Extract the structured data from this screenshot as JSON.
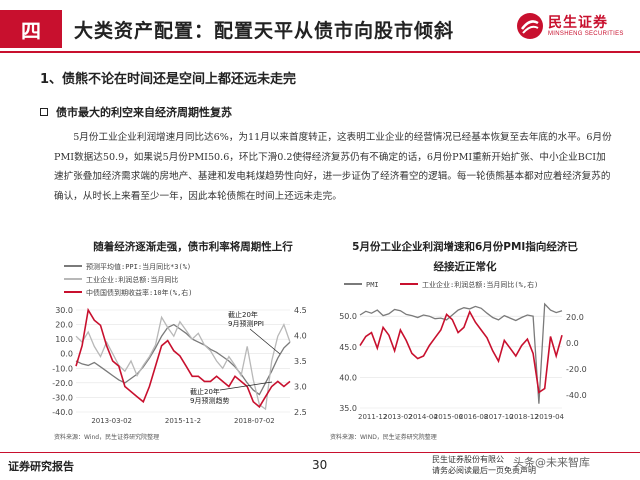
{
  "header": {
    "section_num": "四",
    "title": "大类资产配置：配置天平从债市向股市倾斜",
    "logo_cn": "民生证券",
    "logo_en": "MINSHENG SECURITIES",
    "brand_color": "#c8102e"
  },
  "subheading": "1、债熊不论在时间还是空间上都还远未走完",
  "bullet_heading": "债市最大的利空来自经济周期性复苏",
  "paragraph": "5月份工业企业利润增速月同比达6%，为11月以来首度转正，这表明工业企业的经营情况已经基本恢复至去年底的水平。6月份PMI数据达50.9，如果说5月份PMI50.6，环比下滑0.2使得经济复苏仍有不确定的话，6月份PMI重新开始扩张、中小企业BCI加速扩张叠加经济需求端的房地产、基建和发电耗煤趋势性向好，进一步证伪了经济看空的逻辑。每一轮债熊基本都对应着经济复苏的确认，从时长上来看至少一年，因此本轮债熊在时间上还远未走完。",
  "chart_data": [
    {
      "type": "line",
      "title": "随着经济逐渐走强，债市利率将周期性上行",
      "legend": [
        "预测平均值:PPI:当月同比*3(%)",
        "工业企业:利润总额:当月同比",
        "中债国债到期收益率:10年(%,右)"
      ],
      "x_ticks": [
        "2013-03-02",
        "2015-11-2",
        "2018-07-02"
      ],
      "y_left_ticks": [
        "30.0",
        "20.0",
        "10.0",
        "0.0",
        "-10.0",
        "-20.0",
        "-30.0",
        "-40.0"
      ],
      "y_left_range": [
        -40,
        30
      ],
      "y_right_ticks": [
        "4.5",
        "4.0",
        "3.5",
        "3.0",
        "2.5"
      ],
      "y_right_range": [
        2.5,
        4.5
      ],
      "annotations": [
        "截止20年9月预测PPI",
        "截止20年9月预测趋势"
      ],
      "source": "资料来源：Wind，民生证券研究院整理",
      "series": [
        {
          "name": "预测平均值:PPI:当月同比*3(%)",
          "color": "#7a7a7a",
          "axis": "left",
          "values": [
            -5,
            -7,
            -8,
            -6,
            -9,
            -12,
            -15,
            -18,
            -20,
            -17,
            -14,
            -9,
            -3,
            4,
            12,
            18,
            20,
            17,
            14,
            10,
            8,
            6,
            3,
            1,
            -2,
            -5,
            -9,
            -14,
            -20,
            -25,
            -28,
            -20,
            -12,
            -3,
            4,
            8
          ]
        },
        {
          "name": "工业企业:利润总额:当月同比",
          "color": "#b8b8b8",
          "axis": "left",
          "values": [
            12,
            8,
            15,
            5,
            -2,
            8,
            0,
            -8,
            -12,
            -5,
            -15,
            -8,
            -2,
            6,
            25,
            18,
            12,
            22,
            16,
            10,
            14,
            6,
            2,
            -5,
            -10,
            -2,
            -8,
            -15,
            5,
            -18,
            -35,
            -38,
            -5,
            12,
            20,
            8
          ]
        },
        {
          "name": "中债国债到期收益率:10年(%,右)",
          "color": "#c8102e",
          "axis": "right",
          "values": [
            3.4,
            3.8,
            4.5,
            4.3,
            4.2,
            3.8,
            3.5,
            3.4,
            3.0,
            2.9,
            2.8,
            2.7,
            3.0,
            3.4,
            3.8,
            3.9,
            3.7,
            3.6,
            3.4,
            3.2,
            3.2,
            3.1,
            3.1,
            3.2,
            3.1,
            3.0,
            3.2,
            3.1,
            3.0,
            2.7,
            2.6,
            2.8,
            3.0,
            3.1,
            3.0,
            3.1
          ]
        }
      ]
    },
    {
      "type": "line",
      "title_line1": "5月份工业企业利润增速和6月份PMI指向经济已",
      "title_line2": "经接近正常化",
      "legend": [
        "PMI",
        "工业企业:利润总额:当月同比(%,右)"
      ],
      "x_ticks": [
        "2011-12",
        "2013-02",
        "2014-04",
        "2015-06",
        "2016-08",
        "2017-10",
        "2018-12",
        "2019-04"
      ],
      "y_left_ticks": [
        "50.0",
        "45.0",
        "40.0",
        "35.0"
      ],
      "y_left_range": [
        35,
        52
      ],
      "y_right_ticks": [
        "20.0",
        "0.0",
        "-20.0",
        "-40.0"
      ],
      "y_right_range": [
        -50,
        30
      ],
      "source": "资料来源：WIND，民生证券研究院整理",
      "series": [
        {
          "name": "PMI",
          "color": "#7a7a7a",
          "axis": "left",
          "values": [
            50.2,
            50.8,
            50.5,
            51.0,
            50.1,
            50.4,
            51.1,
            50.9,
            50.3,
            50.1,
            49.8,
            50.2,
            50.0,
            49.6,
            49.7,
            49.4,
            50.2,
            51.0,
            51.4,
            51.2,
            51.6,
            51.3,
            50.5,
            49.8,
            49.4,
            50.1,
            49.7,
            49.3,
            49.8,
            50.2,
            50.0,
            35.7,
            52.0,
            51.0,
            50.6,
            50.9
          ]
        },
        {
          "name": "工业企业:利润总额:当月同比(%,右)",
          "color": "#c8102e",
          "axis": "right",
          "values": [
            -2,
            5,
            8,
            -4,
            12,
            6,
            -6,
            10,
            2,
            -8,
            -12,
            -10,
            -2,
            4,
            10,
            22,
            18,
            8,
            12,
            24,
            16,
            10,
            4,
            -6,
            -14,
            2,
            -4,
            -10,
            -2,
            3,
            -8,
            -38,
            -35,
            5,
            -10,
            6
          ]
        }
      ]
    }
  ],
  "footer": {
    "left": "证券研究报告",
    "page": "30",
    "company_line1": "民生证券股份有限公",
    "company_line2": "请务必阅读最后一页免责声明",
    "watermark": "头条@未来智库"
  }
}
